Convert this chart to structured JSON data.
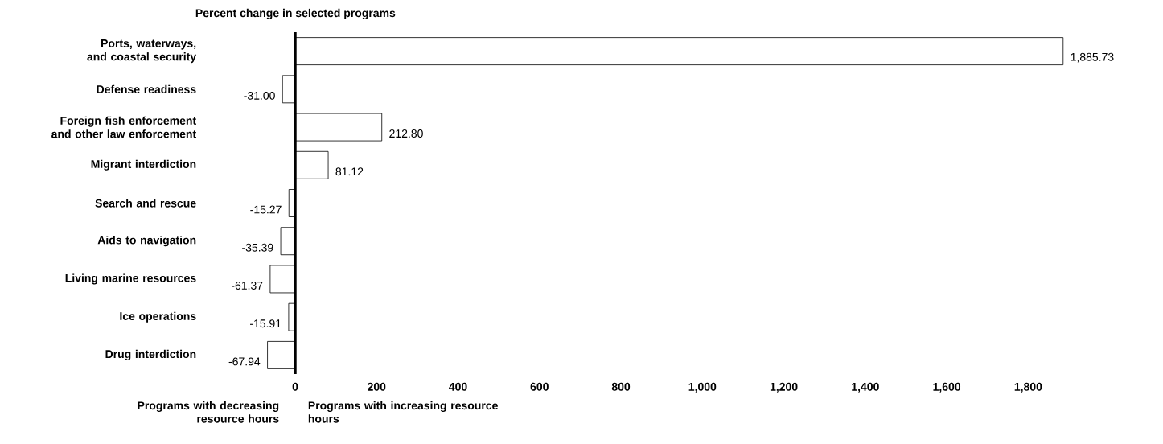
{
  "chart_data": {
    "type": "bar",
    "orientation": "horizontal",
    "title": "Percent change in selected programs",
    "categories": [
      "Ports, waterways, and coastal security",
      "Defense readiness",
      "Foreign fish enforcement and other law enforcement",
      "Migrant interdiction",
      "Search and rescue",
      "Aids to navigation",
      "Living marine resources",
      "Ice operations",
      "Drug interdiction"
    ],
    "values": [
      1885.73,
      -31.0,
      212.8,
      81.12,
      -15.27,
      -35.39,
      -61.37,
      -15.91,
      -67.94
    ],
    "value_labels": [
      "1,885.73",
      "-31.00",
      "212.80",
      "81.12",
      "-15.27",
      "-35.39",
      "-61.37",
      "-15.91",
      "-67.94"
    ],
    "color": "#ffffff",
    "xlim": [
      -75,
      1900
    ],
    "xticks": [
      0,
      200,
      400,
      600,
      800,
      {
        "value": 1000,
        "label": "1,000"
      },
      {
        "value": 1200,
        "label": "1,200"
      },
      {
        "value": 1400,
        "label": "1,400"
      },
      {
        "value": 1600,
        "label": "1,600"
      },
      {
        "value": 1800,
        "label": "1,800"
      }
    ],
    "annotations": [
      "Programs with decreasing resource hours",
      "Programs with increasing resource hours"
    ]
  }
}
